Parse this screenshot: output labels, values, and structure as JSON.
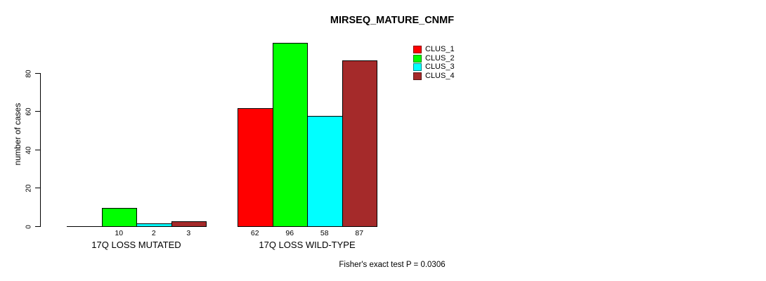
{
  "chart_data": {
    "type": "bar",
    "title": "MIRSEQ_MATURE_CNMF",
    "ylabel": "number of cases",
    "xlabel": "",
    "categories": [
      "17Q LOSS MUTATED",
      "17Q LOSS WILD-TYPE"
    ],
    "series": [
      {
        "name": "CLUS_1",
        "color": "#FF0000",
        "values": [
          0,
          62
        ]
      },
      {
        "name": "CLUS_2",
        "color": "#00FF00",
        "values": [
          10,
          96
        ]
      },
      {
        "name": "CLUS_3",
        "color": "#00FFFF",
        "values": [
          2,
          58
        ]
      },
      {
        "name": "CLUS_4",
        "color": "#A52A2A",
        "values": [
          3,
          87
        ]
      }
    ],
    "y_axis": {
      "ticks": [
        0,
        20,
        40,
        60,
        80
      ],
      "range": [
        0,
        96
      ]
    },
    "bar_value_labels": {
      "shown": true,
      "note": "value printed under each bar; zero-value bars have no label"
    },
    "legend": {
      "position": "top-right",
      "entries": [
        "CLUS_1",
        "CLUS_2",
        "CLUS_3",
        "CLUS_4"
      ]
    },
    "annotation": "Fisher's exact test P = 0.0306",
    "grid": false,
    "background": "#FFFFFF",
    "axis_color": "#000000"
  }
}
